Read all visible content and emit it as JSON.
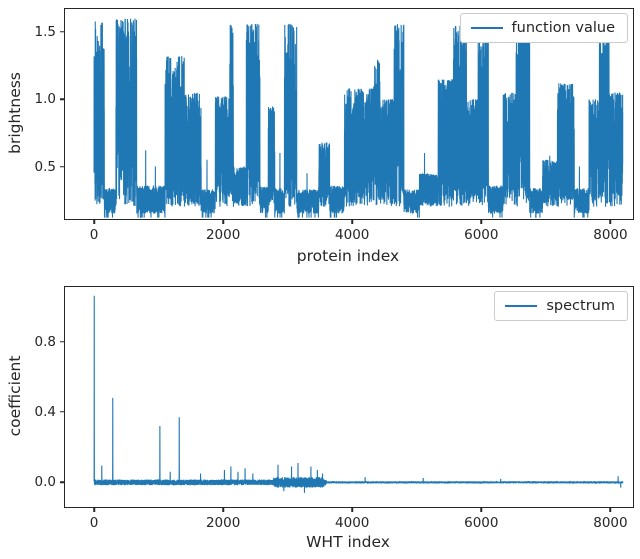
{
  "figure": {
    "background": "#ffffff",
    "line_color": "#1f77b4",
    "axis_color": "#262626",
    "tick_label_color": "#262626"
  },
  "chart_data": [
    {
      "type": "line",
      "name": "brightness-vs-protein-index",
      "title": "",
      "xlabel": "protein index",
      "ylabel": "brightness",
      "legend_label": "function value",
      "legend_position": "upper right",
      "grid": false,
      "n_points": 8192,
      "xlim": [
        -450,
        8350
      ],
      "ylim": [
        0.11,
        1.67
      ],
      "xticks": [
        0,
        2000,
        4000,
        6000,
        8000
      ],
      "xtick_labels": [
        "0",
        "2000",
        "4000",
        "6000",
        "8000"
      ],
      "yticks": [
        0.5,
        1.0,
        1.5
      ],
      "ytick_labels": [
        "0.5",
        "1.0",
        "1.5"
      ],
      "signal_model": {
        "description": "dense noisy binary-like brightness signal over 8192 protein indices; within each segment the trace oscillates densely between the baseline and the segment peak, forming solid-looking vertical bands",
        "seed": 1337,
        "baseline": 0.2,
        "segments": [
          [
            0,
            160,
            1.58
          ],
          [
            160,
            340,
            0.34
          ],
          [
            340,
            660,
            1.6
          ],
          [
            660,
            1100,
            0.36
          ],
          [
            1100,
            1400,
            1.32
          ],
          [
            1400,
            1660,
            1.05
          ],
          [
            1660,
            1880,
            0.33
          ],
          [
            1880,
            2100,
            1.02
          ],
          [
            2100,
            2160,
            1.56
          ],
          [
            2160,
            2360,
            0.5
          ],
          [
            2360,
            2570,
            1.56
          ],
          [
            2570,
            2700,
            0.35
          ],
          [
            2700,
            2800,
            0.95
          ],
          [
            2800,
            2950,
            0.34
          ],
          [
            2950,
            3140,
            1.56
          ],
          [
            3140,
            3480,
            0.33
          ],
          [
            3480,
            3650,
            0.68
          ],
          [
            3650,
            3880,
            0.36
          ],
          [
            3880,
            4330,
            1.08
          ],
          [
            4330,
            4430,
            1.3
          ],
          [
            4430,
            4650,
            1.0
          ],
          [
            4650,
            4800,
            1.56
          ],
          [
            4800,
            5040,
            0.33
          ],
          [
            5040,
            5330,
            0.45
          ],
          [
            5330,
            5570,
            1.15
          ],
          [
            5570,
            5770,
            1.56
          ],
          [
            5770,
            5950,
            1.0
          ],
          [
            5950,
            6110,
            1.46
          ],
          [
            6110,
            6340,
            0.36
          ],
          [
            6340,
            6540,
            1.05
          ],
          [
            6540,
            6750,
            1.52
          ],
          [
            6750,
            6950,
            0.34
          ],
          [
            6950,
            7180,
            0.55
          ],
          [
            7180,
            7440,
            1.12
          ],
          [
            7440,
            7670,
            0.34
          ],
          [
            7670,
            7830,
            1.0
          ],
          [
            7830,
            7980,
            1.52
          ],
          [
            7980,
            8192,
            1.05
          ]
        ],
        "spikes": [
          [
            800,
            0.62
          ],
          [
            950,
            0.5
          ],
          [
            1750,
            0.55
          ],
          [
            2880,
            0.6
          ],
          [
            3300,
            0.45
          ],
          [
            5120,
            0.6
          ],
          [
            7060,
            0.58
          ],
          [
            7520,
            0.5
          ]
        ]
      }
    },
    {
      "type": "line",
      "name": "wht-spectrum",
      "title": "",
      "xlabel": "WHT index",
      "ylabel": "coefficient",
      "legend_label": "spectrum",
      "legend_position": "upper right",
      "grid": false,
      "n_points": 8192,
      "xlim": [
        -450,
        8350
      ],
      "ylim": [
        -0.14,
        1.11
      ],
      "xticks": [
        0,
        2000,
        4000,
        6000,
        8000
      ],
      "xtick_labels": [
        "0",
        "2000",
        "4000",
        "6000",
        "8000"
      ],
      "yticks": [
        0.0,
        0.4,
        0.8
      ],
      "ytick_labels": [
        "0.0",
        "0.4",
        "0.8"
      ],
      "signal_model": {
        "description": "sparse Walsh-Hadamard spectrum: near-zero noise floor with a few isolated large coefficients near the low indices",
        "seed": 2024,
        "baseline": 0.0,
        "noise_regions": [
          [
            0,
            3600,
            0.016
          ],
          [
            2780,
            3560,
            0.03
          ],
          [
            3600,
            8192,
            0.006
          ]
        ],
        "spikes": [
          [
            3,
            1.06
          ],
          [
            120,
            0.095
          ],
          [
            290,
            0.48
          ],
          [
            1020,
            0.32
          ],
          [
            1180,
            0.06
          ],
          [
            1320,
            0.37
          ],
          [
            1650,
            0.05
          ],
          [
            2020,
            0.07
          ],
          [
            2120,
            0.09
          ],
          [
            2230,
            0.06
          ],
          [
            2340,
            0.08
          ],
          [
            2460,
            0.05
          ],
          [
            2850,
            0.1
          ],
          [
            2940,
            -0.05
          ],
          [
            3060,
            0.09
          ],
          [
            3160,
            0.11
          ],
          [
            3260,
            -0.06
          ],
          [
            3360,
            0.09
          ],
          [
            3460,
            0.07
          ],
          [
            3540,
            0.05
          ],
          [
            4200,
            0.03
          ],
          [
            5100,
            0.025
          ],
          [
            6300,
            0.02
          ],
          [
            8120,
            0.035
          ],
          [
            8160,
            -0.03
          ]
        ]
      }
    }
  ]
}
